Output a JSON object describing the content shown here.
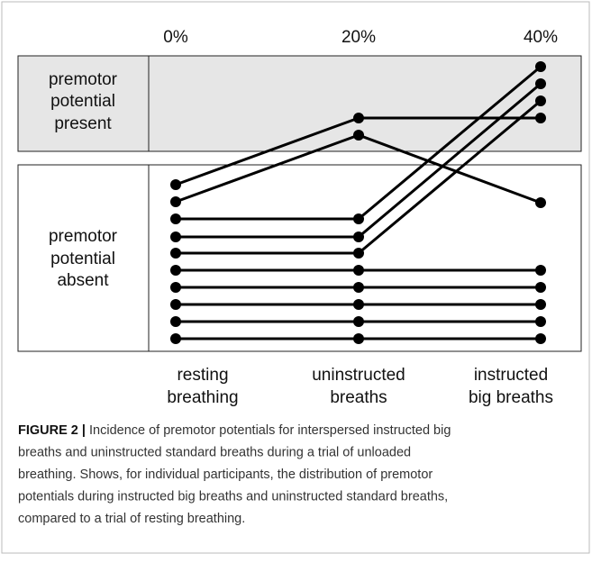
{
  "figure": {
    "column_percents": [
      "0%",
      "20%",
      "40%"
    ],
    "rows": [
      {
        "label_lines": [
          "premotor",
          "potential",
          "present"
        ]
      },
      {
        "label_lines": [
          "premotor",
          "potential",
          "absent"
        ]
      }
    ],
    "columns": [
      {
        "label_lines": [
          "resting",
          "breathing"
        ]
      },
      {
        "label_lines": [
          "uninstructed",
          "breaths"
        ]
      },
      {
        "label_lines": [
          "instructed",
          "big breaths"
        ]
      }
    ]
  },
  "caption": {
    "label": "FIGURE 2 |",
    "lines": [
      "Incidence of premotor potentials for interspersed instructed big",
      "breaths and uninstructed standard breaths during a trial of unloaded",
      "breathing. Shows, for individual participants, the distribution of premotor",
      "potentials during instructed big breaths and uninstructed standard breaths,",
      "compared to a trial of resting breathing."
    ]
  }
}
